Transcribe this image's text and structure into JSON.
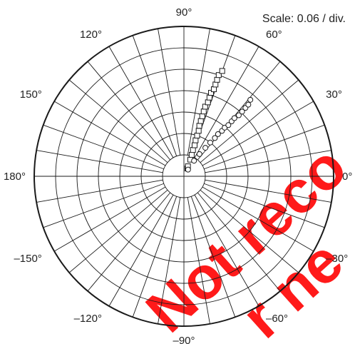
{
  "chart_data": {
    "type": "scatter",
    "coordinate_system": "polar",
    "scale_label": "Scale: 0.06 / div.",
    "angle_tick_labels": [
      "0°",
      "30°",
      "60°",
      "90°",
      "120°",
      "150°",
      "180°",
      "–150°",
      "–120°",
      "–90°",
      "–60°",
      "–30°"
    ],
    "angle_ticks_deg": [
      0,
      30,
      60,
      90,
      120,
      150,
      180,
      210,
      240,
      270,
      300,
      330
    ],
    "radial_divisions": 7,
    "radial_units_per_div": 0.06,
    "radial_max": 0.42,
    "angular_grid_step_deg": 10,
    "grid": true,
    "series": [
      {
        "marker": "square",
        "points": [
          {
            "r": 0.024,
            "theta": 66
          },
          {
            "r": 0.03,
            "theta": 68
          },
          {
            "r": 0.05,
            "theta": 69
          },
          {
            "r": 0.064,
            "theta": 70
          },
          {
            "r": 0.078,
            "theta": 71
          },
          {
            "r": 0.092,
            "theta": 71
          },
          {
            "r": 0.106,
            "theta": 72
          },
          {
            "r": 0.12,
            "theta": 72
          },
          {
            "r": 0.134,
            "theta": 72
          },
          {
            "r": 0.148,
            "theta": 73
          },
          {
            "r": 0.162,
            "theta": 73
          },
          {
            "r": 0.176,
            "theta": 73
          },
          {
            "r": 0.19,
            "theta": 73
          },
          {
            "r": 0.204,
            "theta": 73
          },
          {
            "r": 0.218,
            "theta": 72
          },
          {
            "r": 0.232,
            "theta": 72
          },
          {
            "r": 0.246,
            "theta": 72
          },
          {
            "r": 0.258,
            "theta": 71
          },
          {
            "r": 0.272,
            "theta": 71
          },
          {
            "r": 0.286,
            "theta": 71
          },
          {
            "r": 0.3,
            "theta": 71
          },
          {
            "r": 0.314,
            "theta": 70
          }
        ]
      },
      {
        "marker": "circle",
        "points": [
          {
            "r": 0.022,
            "theta": 58
          },
          {
            "r": 0.052,
            "theta": 57
          },
          {
            "r": 0.076,
            "theta": 55
          },
          {
            "r": 0.1,
            "theta": 53
          },
          {
            "r": 0.12,
            "theta": 52
          },
          {
            "r": 0.138,
            "theta": 51
          },
          {
            "r": 0.152,
            "theta": 51
          },
          {
            "r": 0.166,
            "theta": 50
          },
          {
            "r": 0.178,
            "theta": 50
          },
          {
            "r": 0.19,
            "theta": 49
          },
          {
            "r": 0.204,
            "theta": 49
          },
          {
            "r": 0.216,
            "theta": 49
          },
          {
            "r": 0.23,
            "theta": 48
          },
          {
            "r": 0.244,
            "theta": 48
          },
          {
            "r": 0.258,
            "theta": 48
          },
          {
            "r": 0.27,
            "theta": 48
          },
          {
            "r": 0.284,
            "theta": 49
          }
        ]
      }
    ]
  },
  "watermark": {
    "line1": "Not reco",
    "line2": "r ne",
    "color": "#ff1a1a"
  }
}
